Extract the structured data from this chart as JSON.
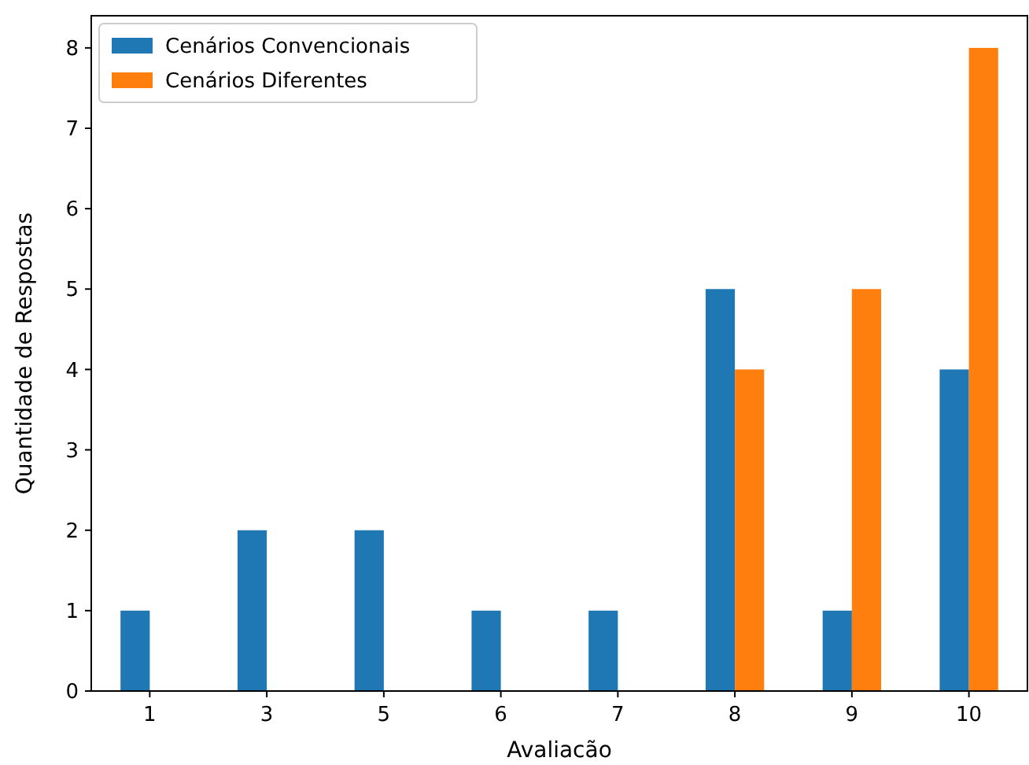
{
  "chart_data": {
    "type": "bar",
    "xlabel": "Avaliacão",
    "ylabel": "Quantidade de Respostas",
    "categories": [
      "1",
      "3",
      "5",
      "6",
      "7",
      "8",
      "9",
      "10"
    ],
    "series": [
      {
        "name": "Cenários Convencionais",
        "color": "#1f77b4",
        "values": [
          1,
          2,
          2,
          1,
          1,
          5,
          1,
          4
        ]
      },
      {
        "name": "Cenários Diferentes",
        "color": "#ff7f0e",
        "values": [
          0,
          0,
          0,
          0,
          0,
          4,
          5,
          8
        ]
      }
    ],
    "ylim": [
      0,
      8.4
    ],
    "yticks": [
      0,
      1,
      2,
      3,
      4,
      5,
      6,
      7,
      8
    ],
    "grid": false,
    "legend": "top left"
  }
}
